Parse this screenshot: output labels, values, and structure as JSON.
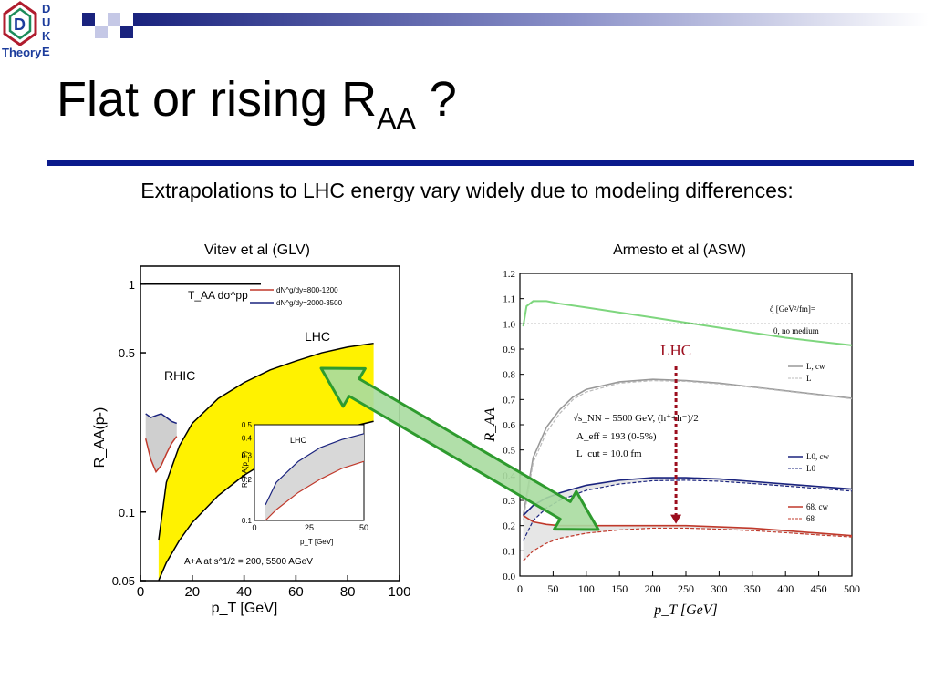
{
  "logo": {
    "letters": [
      "D",
      "U",
      "K",
      "E"
    ],
    "word": "Theory"
  },
  "slide": {
    "title_main": "Flat or rising R",
    "title_sub": "AA",
    "title_end": " ?",
    "subtitle": "Extrapolations to LHC energy vary widely due to modeling differences:"
  },
  "colors": {
    "accent_blue": "#0b1a8c",
    "arrow_green": "#2e9b2e",
    "lhc_marker": "#9c0e1e",
    "band_yellow": "#fff200"
  },
  "chart_data": [
    {
      "type": "area",
      "caption": "Vitev et al (GLV)",
      "xlabel": "p_T [GeV]",
      "ylabel": "R_AA(p-)",
      "x_ticks": [
        0,
        20,
        40,
        60,
        80,
        100
      ],
      "y_ticks": [
        "0.05",
        "0.1",
        "0.5",
        "1"
      ],
      "xlim": [
        0,
        100
      ],
      "ylim": [
        0.05,
        1.2
      ],
      "log_y": true,
      "reference_label": "T_AA dσ^pp",
      "reference_value": 1.0,
      "legend": [
        "dN^g/dy=800-1200",
        "dN^g/dy=2000-3500"
      ],
      "annotations": [
        "RHIC",
        "LHC"
      ],
      "footer": "A+A at s^1/2 = 200, 5500 AGeV",
      "series": [
        {
          "name": "LHC band upper",
          "x": [
            7,
            10,
            15,
            20,
            30,
            40,
            50,
            60,
            70,
            80,
            90
          ],
          "y": [
            0.075,
            0.135,
            0.195,
            0.245,
            0.315,
            0.37,
            0.42,
            0.46,
            0.5,
            0.53,
            0.55
          ]
        },
        {
          "name": "LHC band lower",
          "x": [
            7,
            10,
            15,
            20,
            30,
            40,
            50,
            60,
            70,
            80,
            90
          ],
          "y": [
            0.05,
            0.06,
            0.075,
            0.09,
            0.118,
            0.145,
            0.17,
            0.195,
            0.215,
            0.235,
            0.25
          ]
        },
        {
          "name": "RHIC upper",
          "x": [
            2,
            4,
            6,
            8,
            10,
            12,
            14
          ],
          "y": [
            0.27,
            0.26,
            0.265,
            0.27,
            0.26,
            0.25,
            0.245
          ]
        },
        {
          "name": "RHIC lower",
          "x": [
            2,
            4,
            6,
            8,
            10,
            12,
            14
          ],
          "y": [
            0.21,
            0.17,
            0.15,
            0.16,
            0.18,
            0.2,
            0.215
          ]
        }
      ],
      "inset": {
        "label": "LHC",
        "xlabel": "p_T [GeV]",
        "ylabel": "R_AA(p_T)",
        "x_ticks": [
          0,
          25,
          50
        ],
        "y_ticks": [
          "0.1",
          "0.2",
          "0.3",
          "0.4",
          "0.5"
        ],
        "xlim": [
          0,
          50
        ],
        "ylim": [
          0.1,
          0.5
        ],
        "upper": {
          "x": [
            5,
            10,
            20,
            30,
            40,
            50
          ],
          "y": [
            0.13,
            0.19,
            0.27,
            0.34,
            0.39,
            0.43
          ]
        },
        "lower": {
          "x": [
            5,
            10,
            20,
            30,
            40,
            50
          ],
          "y": [
            0.1,
            0.12,
            0.16,
            0.2,
            0.24,
            0.27
          ]
        }
      }
    },
    {
      "type": "line",
      "caption": "Armesto et al (ASW)",
      "xlabel": "p_T [GeV]",
      "ylabel": "R_AA",
      "x_ticks": [
        0,
        50,
        100,
        150,
        200,
        250,
        300,
        350,
        400,
        450,
        500
      ],
      "y_ticks": [
        0.0,
        0.1,
        0.2,
        0.3,
        0.4,
        0.5,
        0.6,
        0.7,
        0.8,
        0.9,
        1.0,
        1.1,
        1.2
      ],
      "xlim": [
        0,
        500
      ],
      "ylim": [
        0,
        1.2
      ],
      "reference_value": 1.0,
      "legend_title": "q̂ [GeV²/fm]=",
      "legend": [
        "0, no medium",
        "L, cw",
        "L",
        "L0, cw",
        "L0",
        "68, cw",
        "68"
      ],
      "params": [
        "√s_NN = 5500 GeV, (h⁺+h⁻)/2",
        "A_eff = 193 (0-5%)",
        "L_cut = 10.0 fm"
      ],
      "lhc_label": "LHC",
      "lhc_x": 235,
      "series": [
        {
          "name": "0, no medium",
          "x": [
            5,
            10,
            20,
            40,
            60,
            100,
            150,
            200,
            250,
            300,
            350,
            400,
            450,
            500
          ],
          "y": [
            0.99,
            1.07,
            1.09,
            1.09,
            1.08,
            1.065,
            1.045,
            1.025,
            1.005,
            0.985,
            0.965,
            0.945,
            0.93,
            0.915
          ]
        },
        {
          "name": "L, cw",
          "x": [
            5,
            20,
            40,
            60,
            80,
            100,
            150,
            200,
            250,
            300,
            350,
            400,
            450,
            500
          ],
          "y": [
            0.24,
            0.47,
            0.59,
            0.66,
            0.71,
            0.74,
            0.77,
            0.78,
            0.775,
            0.765,
            0.75,
            0.735,
            0.72,
            0.705
          ]
        },
        {
          "name": "L",
          "x": [
            5,
            20,
            40,
            60,
            80,
            100,
            150,
            200,
            250,
            300,
            350,
            400,
            450,
            500
          ],
          "y": [
            0.22,
            0.45,
            0.57,
            0.645,
            0.7,
            0.73,
            0.765,
            0.775,
            0.772,
            0.762,
            0.748,
            0.733,
            0.718,
            0.703
          ]
        },
        {
          "name": "L0, cw",
          "x": [
            5,
            20,
            40,
            60,
            100,
            150,
            200,
            250,
            300,
            350,
            400,
            450,
            500
          ],
          "y": [
            0.24,
            0.28,
            0.31,
            0.33,
            0.36,
            0.38,
            0.39,
            0.39,
            0.385,
            0.375,
            0.365,
            0.355,
            0.345
          ]
        },
        {
          "name": "L0",
          "x": [
            5,
            20,
            40,
            60,
            100,
            150,
            200,
            250,
            300,
            350,
            400,
            450,
            500
          ],
          "y": [
            0.14,
            0.22,
            0.27,
            0.3,
            0.34,
            0.365,
            0.378,
            0.38,
            0.376,
            0.367,
            0.357,
            0.347,
            0.337
          ]
        },
        {
          "name": "68, cw",
          "x": [
            5,
            20,
            40,
            60,
            100,
            150,
            200,
            250,
            300,
            350,
            400,
            450,
            500
          ],
          "y": [
            0.24,
            0.215,
            0.205,
            0.2,
            0.2,
            0.2,
            0.2,
            0.2,
            0.195,
            0.19,
            0.18,
            0.17,
            0.16
          ]
        },
        {
          "name": "68",
          "x": [
            5,
            20,
            40,
            60,
            100,
            150,
            200,
            250,
            300,
            350,
            400,
            450,
            500
          ],
          "y": [
            0.06,
            0.1,
            0.13,
            0.15,
            0.17,
            0.183,
            0.19,
            0.19,
            0.186,
            0.18,
            0.172,
            0.163,
            0.155
          ]
        }
      ]
    }
  ]
}
